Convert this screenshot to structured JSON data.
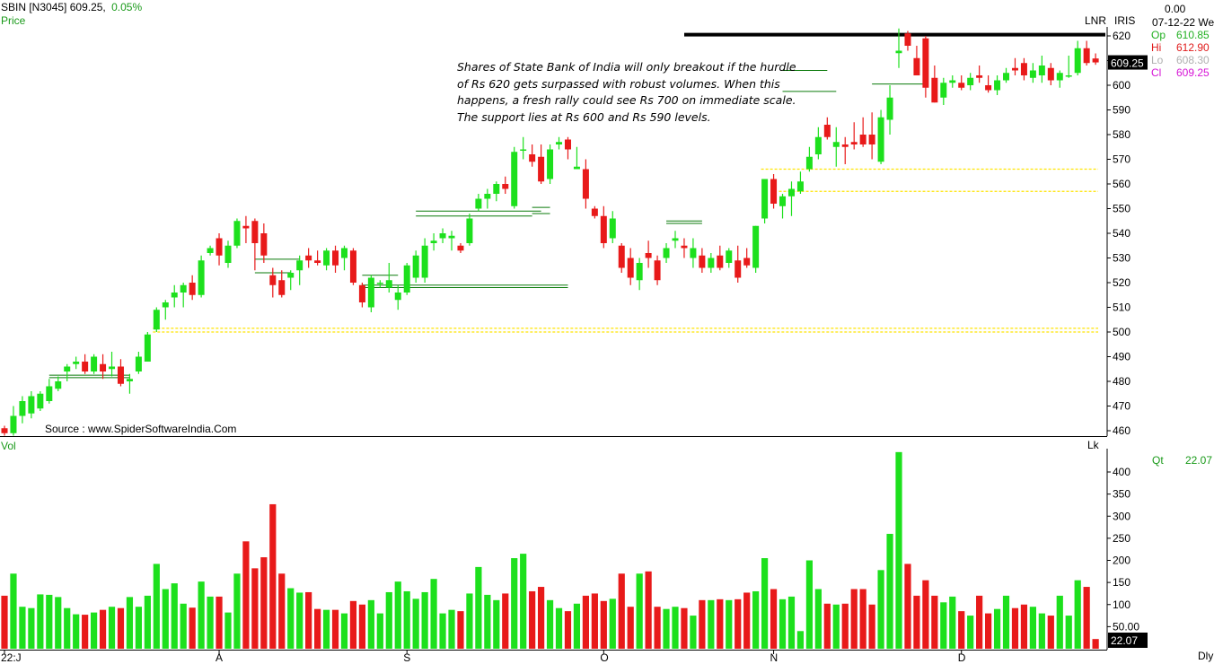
{
  "header": {
    "symbol": "SBIN [N3045]",
    "price": "609.25,",
    "change": "0.05%",
    "price_label": "Price",
    "top_right_value": "0.00",
    "date": "07-12-22 We",
    "lnr": "LNR",
    "iris": "IRIS",
    "last_price_box": "609.25"
  },
  "ohlc": [
    {
      "label": "Op",
      "value": "610.85",
      "color": "#22b022"
    },
    {
      "label": "Hi",
      "value": "612.90",
      "color": "#e01b1b"
    },
    {
      "label": "Lo",
      "value": "608.30",
      "color": "#b0b0b0"
    },
    {
      "label": "Cl",
      "value": "609.25",
      "color": "#d614d6"
    }
  ],
  "annotation": "Shares of State Bank of India will only breakout if the hurdle of Rs 620 gets surpassed with robust volumes. When this happens, a fresh rally could see Rs 700 on immediate scale. The support lies at Rs 600 and Rs 590 levels.",
  "source": "Source : www.SpiderSoftwareIndia.Com",
  "volume_panel": {
    "label": "Vol",
    "unit": "Lk",
    "qt_label": "Qt",
    "qt_value": "22.07",
    "last_box": "22.07",
    "period": "Dly"
  },
  "chart_data": {
    "type": "candlestick",
    "price_axis": {
      "min": 457,
      "max": 625,
      "ticks": [
        460,
        470,
        480,
        490,
        500,
        510,
        520,
        530,
        540,
        550,
        560,
        570,
        580,
        590,
        600,
        610,
        620
      ]
    },
    "volume_axis": {
      "min": 0,
      "max": 440,
      "ticks": [
        50,
        100,
        150,
        200,
        250,
        300,
        350,
        400
      ],
      "tick_labels": [
        "50.00",
        "100",
        "150",
        "200",
        "250",
        "300",
        "350",
        "400"
      ]
    },
    "x_labels": [
      {
        "label": "22:J",
        "index": 0
      },
      {
        "label": "A",
        "index": 24
      },
      {
        "label": "S",
        "index": 45
      },
      {
        "label": "O",
        "index": 67
      },
      {
        "label": "N",
        "index": 86
      },
      {
        "label": "D",
        "index": 107
      }
    ],
    "candles": [
      {
        "o": 461,
        "h": 462,
        "l": 458,
        "c": 459,
        "v": 120
      },
      {
        "o": 459,
        "h": 470,
        "l": 458,
        "c": 466,
        "v": 170
      },
      {
        "o": 466,
        "h": 474,
        "l": 463,
        "c": 472,
        "v": 95
      },
      {
        "o": 467,
        "h": 476,
        "l": 465,
        "c": 474,
        "v": 92
      },
      {
        "o": 469,
        "h": 476,
        "l": 468,
        "c": 475,
        "v": 123
      },
      {
        "o": 472,
        "h": 481,
        "l": 471,
        "c": 478,
        "v": 122
      },
      {
        "o": 477,
        "h": 482,
        "l": 476,
        "c": 480,
        "v": 117
      },
      {
        "o": 484,
        "h": 487,
        "l": 480,
        "c": 486,
        "v": 92
      },
      {
        "o": 487,
        "h": 490,
        "l": 485,
        "c": 488,
        "v": 78
      },
      {
        "o": 488,
        "h": 491,
        "l": 483,
        "c": 484,
        "v": 77
      },
      {
        "o": 484,
        "h": 491,
        "l": 483,
        "c": 490,
        "v": 82
      },
      {
        "o": 487,
        "h": 491,
        "l": 481,
        "c": 484,
        "v": 88
      },
      {
        "o": 485,
        "h": 492,
        "l": 482,
        "c": 486,
        "v": 95
      },
      {
        "o": 486,
        "h": 489,
        "l": 478,
        "c": 479,
        "v": 92
      },
      {
        "o": 480,
        "h": 483,
        "l": 475,
        "c": 481,
        "v": 117
      },
      {
        "o": 484,
        "h": 492,
        "l": 483,
        "c": 490,
        "v": 95
      },
      {
        "o": 488,
        "h": 500,
        "l": 488,
        "c": 499,
        "v": 120
      },
      {
        "o": 501,
        "h": 510,
        "l": 500,
        "c": 509,
        "v": 192
      },
      {
        "o": 510,
        "h": 513,
        "l": 505,
        "c": 512,
        "v": 135
      },
      {
        "o": 514,
        "h": 519,
        "l": 510,
        "c": 516,
        "v": 148
      },
      {
        "o": 516,
        "h": 520,
        "l": 510,
        "c": 519,
        "v": 102
      },
      {
        "o": 520,
        "h": 523,
        "l": 513,
        "c": 515,
        "v": 93
      },
      {
        "o": 515,
        "h": 531,
        "l": 514,
        "c": 529,
        "v": 152
      },
      {
        "o": 532,
        "h": 535,
        "l": 531,
        "c": 534,
        "v": 118
      },
      {
        "o": 538,
        "h": 540,
        "l": 527,
        "c": 531,
        "v": 118
      },
      {
        "o": 528,
        "h": 537,
        "l": 526,
        "c": 535,
        "v": 82
      },
      {
        "o": 535,
        "h": 546,
        "l": 534,
        "c": 545,
        "v": 170
      },
      {
        "o": 543,
        "h": 547,
        "l": 536,
        "c": 542,
        "v": 243
      },
      {
        "o": 545,
        "h": 546,
        "l": 525,
        "c": 536,
        "v": 182
      },
      {
        "o": 540,
        "h": 544,
        "l": 528,
        "c": 531,
        "v": 207
      },
      {
        "o": 523,
        "h": 526,
        "l": 514,
        "c": 519,
        "v": 327
      },
      {
        "o": 521,
        "h": 525,
        "l": 514,
        "c": 515,
        "v": 170
      },
      {
        "o": 522,
        "h": 525,
        "l": 517,
        "c": 524,
        "v": 137
      },
      {
        "o": 525,
        "h": 531,
        "l": 519,
        "c": 529,
        "v": 127
      },
      {
        "o": 531,
        "h": 534,
        "l": 526,
        "c": 529,
        "v": 128
      },
      {
        "o": 529,
        "h": 533,
        "l": 527,
        "c": 528,
        "v": 90
      },
      {
        "o": 527,
        "h": 534,
        "l": 525,
        "c": 533,
        "v": 88
      },
      {
        "o": 533,
        "h": 535,
        "l": 524,
        "c": 527,
        "v": 88
      },
      {
        "o": 530,
        "h": 535,
        "l": 525,
        "c": 534,
        "v": 80
      },
      {
        "o": 533,
        "h": 534,
        "l": 519,
        "c": 520,
        "v": 108
      },
      {
        "o": 519,
        "h": 520,
        "l": 510,
        "c": 512,
        "v": 100
      },
      {
        "o": 510,
        "h": 523,
        "l": 508,
        "c": 522,
        "v": 110
      },
      {
        "o": 520,
        "h": 521,
        "l": 518,
        "c": 520,
        "v": 80
      },
      {
        "o": 518,
        "h": 528,
        "l": 516,
        "c": 521,
        "v": 128
      },
      {
        "o": 513,
        "h": 519,
        "l": 509,
        "c": 516,
        "v": 152
      },
      {
        "o": 516,
        "h": 528,
        "l": 515,
        "c": 527,
        "v": 130
      },
      {
        "o": 522,
        "h": 533,
        "l": 520,
        "c": 531,
        "v": 113
      },
      {
        "o": 522,
        "h": 538,
        "l": 520,
        "c": 535,
        "v": 128
      },
      {
        "o": 536,
        "h": 540,
        "l": 533,
        "c": 537,
        "v": 158
      },
      {
        "o": 538,
        "h": 542,
        "l": 536,
        "c": 540,
        "v": 80
      },
      {
        "o": 538,
        "h": 541,
        "l": 533,
        "c": 539,
        "v": 88
      },
      {
        "o": 535,
        "h": 536,
        "l": 532,
        "c": 533,
        "v": 85
      },
      {
        "o": 536,
        "h": 548,
        "l": 535,
        "c": 546,
        "v": 125
      },
      {
        "o": 550,
        "h": 556,
        "l": 549,
        "c": 554,
        "v": 185
      },
      {
        "o": 554,
        "h": 558,
        "l": 550,
        "c": 556,
        "v": 122
      },
      {
        "o": 556,
        "h": 561,
        "l": 553,
        "c": 560,
        "v": 110
      },
      {
        "o": 560,
        "h": 563,
        "l": 556,
        "c": 558,
        "v": 125
      },
      {
        "o": 551,
        "h": 575,
        "l": 550,
        "c": 573,
        "v": 205
      },
      {
        "o": 574,
        "h": 579,
        "l": 570,
        "c": 574,
        "v": 215
      },
      {
        "o": 572,
        "h": 576,
        "l": 567,
        "c": 569,
        "v": 130
      },
      {
        "o": 571,
        "h": 576,
        "l": 560,
        "c": 561,
        "v": 140
      },
      {
        "o": 562,
        "h": 576,
        "l": 560,
        "c": 574,
        "v": 110
      },
      {
        "o": 576,
        "h": 579,
        "l": 574,
        "c": 577,
        "v": 92
      },
      {
        "o": 578,
        "h": 579,
        "l": 570,
        "c": 574,
        "v": 85
      },
      {
        "o": 566,
        "h": 575,
        "l": 566,
        "c": 567,
        "v": 102
      },
      {
        "o": 566,
        "h": 570,
        "l": 550,
        "c": 554,
        "v": 120
      },
      {
        "o": 550,
        "h": 551,
        "l": 546,
        "c": 547,
        "v": 125
      },
      {
        "o": 547,
        "h": 551,
        "l": 534,
        "c": 536,
        "v": 108
      },
      {
        "o": 538,
        "h": 549,
        "l": 536,
        "c": 546,
        "v": 113
      },
      {
        "o": 535,
        "h": 536,
        "l": 524,
        "c": 526,
        "v": 170
      },
      {
        "o": 530,
        "h": 534,
        "l": 519,
        "c": 522,
        "v": 95
      },
      {
        "o": 521,
        "h": 530,
        "l": 517,
        "c": 528,
        "v": 170
      },
      {
        "o": 532,
        "h": 537,
        "l": 526,
        "c": 530,
        "v": 175
      },
      {
        "o": 529,
        "h": 531,
        "l": 519,
        "c": 521,
        "v": 95
      },
      {
        "o": 530,
        "h": 536,
        "l": 528,
        "c": 534,
        "v": 90
      },
      {
        "o": 537,
        "h": 541,
        "l": 534,
        "c": 538,
        "v": 95
      },
      {
        "o": 535,
        "h": 538,
        "l": 530,
        "c": 534,
        "v": 92
      },
      {
        "o": 530,
        "h": 538,
        "l": 526,
        "c": 534,
        "v": 75
      },
      {
        "o": 531,
        "h": 534,
        "l": 524,
        "c": 526,
        "v": 110
      },
      {
        "o": 526,
        "h": 532,
        "l": 524,
        "c": 530,
        "v": 110
      },
      {
        "o": 531,
        "h": 535,
        "l": 525,
        "c": 526,
        "v": 112
      },
      {
        "o": 528,
        "h": 534,
        "l": 526,
        "c": 533,
        "v": 110
      },
      {
        "o": 529,
        "h": 535,
        "l": 520,
        "c": 522,
        "v": 112
      },
      {
        "o": 530,
        "h": 534,
        "l": 526,
        "c": 527,
        "v": 127
      },
      {
        "o": 526,
        "h": 543,
        "l": 524,
        "c": 543,
        "v": 130
      },
      {
        "o": 546,
        "h": 562,
        "l": 544,
        "c": 562,
        "v": 205
      },
      {
        "o": 562,
        "h": 564,
        "l": 550,
        "c": 552,
        "v": 135
      },
      {
        "o": 551,
        "h": 556,
        "l": 546,
        "c": 555,
        "v": 112
      },
      {
        "o": 555,
        "h": 561,
        "l": 547,
        "c": 558,
        "v": 118
      },
      {
        "o": 557,
        "h": 565,
        "l": 556,
        "c": 561,
        "v": 40
      },
      {
        "o": 566,
        "h": 575,
        "l": 565,
        "c": 571,
        "v": 200
      },
      {
        "o": 572,
        "h": 583,
        "l": 570,
        "c": 579,
        "v": 135
      },
      {
        "o": 584,
        "h": 587,
        "l": 578,
        "c": 579,
        "v": 102
      },
      {
        "o": 575,
        "h": 583,
        "l": 567,
        "c": 577,
        "v": 100
      },
      {
        "o": 576,
        "h": 579,
        "l": 568,
        "c": 575,
        "v": 102
      },
      {
        "o": 577,
        "h": 585,
        "l": 574,
        "c": 576,
        "v": 135
      },
      {
        "o": 580,
        "h": 587,
        "l": 575,
        "c": 576,
        "v": 135
      },
      {
        "o": 580,
        "h": 589,
        "l": 570,
        "c": 576,
        "v": 100
      },
      {
        "o": 569,
        "h": 590,
        "l": 568,
        "c": 587,
        "v": 178
      },
      {
        "o": 586,
        "h": 600,
        "l": 580,
        "c": 595,
        "v": 260
      },
      {
        "o": 613,
        "h": 623,
        "l": 607,
        "c": 614,
        "v": 445
      },
      {
        "o": 621,
        "h": 622,
        "l": 614,
        "c": 616,
        "v": 192
      },
      {
        "o": 611,
        "h": 616,
        "l": 605,
        "c": 604,
        "v": 120
      },
      {
        "o": 619,
        "h": 620,
        "l": 595,
        "c": 599,
        "v": 155
      },
      {
        "o": 603,
        "h": 608,
        "l": 593,
        "c": 593,
        "v": 120
      },
      {
        "o": 595,
        "h": 603,
        "l": 592,
        "c": 601,
        "v": 105
      },
      {
        "o": 601,
        "h": 604,
        "l": 599,
        "c": 602,
        "v": 118
      },
      {
        "o": 601,
        "h": 604,
        "l": 598,
        "c": 599,
        "v": 85
      },
      {
        "o": 600,
        "h": 605,
        "l": 598,
        "c": 603,
        "v": 75
      },
      {
        "o": 604,
        "h": 608,
        "l": 601,
        "c": 603,
        "v": 120
      },
      {
        "o": 600,
        "h": 604,
        "l": 597,
        "c": 598,
        "v": 80
      },
      {
        "o": 598,
        "h": 604,
        "l": 596,
        "c": 602,
        "v": 90
      },
      {
        "o": 602,
        "h": 607,
        "l": 601,
        "c": 605,
        "v": 120
      },
      {
        "o": 607,
        "h": 611,
        "l": 604,
        "c": 606,
        "v": 92
      },
      {
        "o": 609,
        "h": 611,
        "l": 602,
        "c": 604,
        "v": 100
      },
      {
        "o": 603,
        "h": 609,
        "l": 601,
        "c": 606,
        "v": 95
      },
      {
        "o": 604,
        "h": 612,
        "l": 601,
        "c": 608,
        "v": 80
      },
      {
        "o": 607,
        "h": 609,
        "l": 600,
        "c": 602,
        "v": 75
      },
      {
        "o": 602,
        "h": 606,
        "l": 599,
        "c": 605,
        "v": 120
      },
      {
        "o": 604,
        "h": 612,
        "l": 603,
        "c": 604,
        "v": 75
      },
      {
        "o": 605,
        "h": 618,
        "l": 604,
        "c": 615,
        "v": 155
      },
      {
        "o": 615,
        "h": 618,
        "l": 608,
        "c": 609,
        "v": 140
      },
      {
        "o": 610.85,
        "h": 612.9,
        "l": 608.3,
        "c": 609.25,
        "v": 22
      }
    ],
    "resistance_line": 620.5,
    "support_dotted": [
      {
        "y": 501.5,
        "from": 17
      },
      {
        "y": 500,
        "from": 17
      },
      {
        "y": 566,
        "from": 85
      },
      {
        "y": 557,
        "from": 87
      }
    ],
    "trend_segments": [
      {
        "i1": 5,
        "i2": 14,
        "y": 481.5
      },
      {
        "i1": 5,
        "i2": 14,
        "y": 482.5
      },
      {
        "i1": 28,
        "i2": 33,
        "y": 529.5
      },
      {
        "i1": 28,
        "i2": 32,
        "y": 524
      },
      {
        "i1": 40,
        "i2": 44,
        "y": 523
      },
      {
        "i1": 40,
        "i2": 63,
        "y": 519
      },
      {
        "i1": 40,
        "i2": 63,
        "y": 518
      },
      {
        "i1": 46,
        "i2": 60,
        "y": 549
      },
      {
        "i1": 46,
        "i2": 59,
        "y": 547
      },
      {
        "i1": 59,
        "i2": 61,
        "y": 550.5
      },
      {
        "i1": 59,
        "i2": 61,
        "y": 548
      },
      {
        "i1": 74,
        "i2": 78,
        "y": 545
      },
      {
        "i1": 74,
        "i2": 78,
        "y": 544
      },
      {
        "i1": 87,
        "i2": 92,
        "y": 606
      },
      {
        "i1": 87,
        "i2": 93,
        "y": 597.5
      },
      {
        "i1": 97,
        "i2": 103,
        "y": 600.5
      }
    ]
  }
}
